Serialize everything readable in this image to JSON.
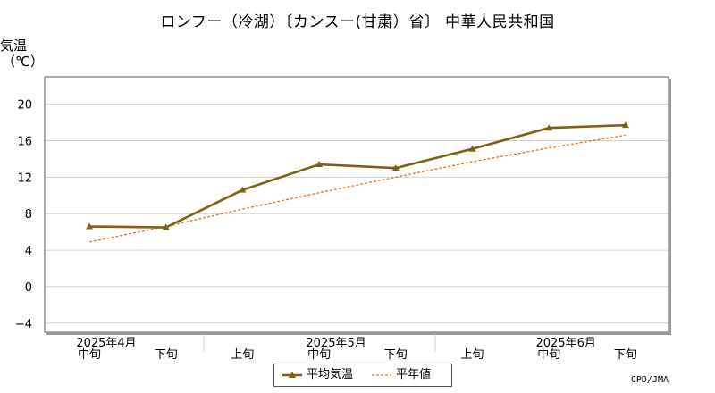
{
  "title": "ロンフー（冷湖）〔カンスー(甘粛）省〕 中華人民共和国",
  "ylabel_line1": "気温",
  "ylabel_line2": "（℃）",
  "credit": "CPD/JMA",
  "colors": {
    "series": "#806010",
    "normal": "#f07010",
    "grid": "#d0d0d0",
    "frame": "#909090"
  },
  "chart_data": {
    "type": "line",
    "ylim": [
      -5,
      23
    ],
    "yticks": [
      "20",
      "16",
      "12",
      "8",
      "4",
      "0",
      "−4"
    ],
    "ytick_values": [
      20,
      16,
      12,
      8,
      4,
      0,
      -4
    ],
    "grid": true,
    "legend_position": "bottom-center",
    "x_sublabels": [
      "中旬",
      "下旬",
      "上旬",
      "中旬",
      "下旬",
      "上旬",
      "中旬",
      "下旬"
    ],
    "x_month_labels": [
      {
        "label": "2025年4月",
        "at_index": 0
      },
      {
        "label": "2025年5月",
        "at_index": 3
      },
      {
        "label": "2025年6月",
        "at_index": 6
      }
    ],
    "series": [
      {
        "name": "平均気温",
        "style": "solid-marker",
        "values": [
          6.6,
          6.5,
          10.6,
          13.4,
          13.0,
          15.1,
          17.4,
          17.7
        ]
      },
      {
        "name": "平年値",
        "style": "dashed",
        "values": [
          4.9,
          6.6,
          8.5,
          10.3,
          12.0,
          13.7,
          15.2,
          16.6
        ]
      }
    ]
  }
}
